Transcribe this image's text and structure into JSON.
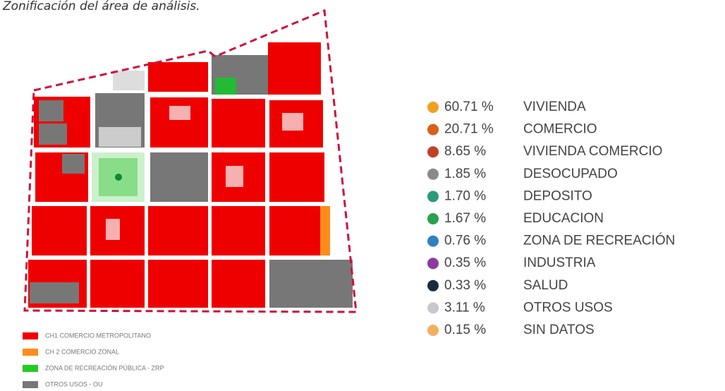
{
  "title": "Zonificación del área de análisis.",
  "zoning_legend": [
    {
      "label": "CH1 COMERCIO METROPOLITANO",
      "color": "#f00000"
    },
    {
      "label": "CH 2 COMERCIO ZONAL",
      "color": "#ff8c1a"
    },
    {
      "label": "ZONA DE RECREACIÓN PÚBLICA - ZRP",
      "color": "#22cc22"
    },
    {
      "label": "OTROS USOS - OU",
      "color": "#777777"
    }
  ],
  "land_use_legend": [
    {
      "percent": "60.71 %",
      "label": "VIVIENDA",
      "color": "#f0a020"
    },
    {
      "percent": "20.71 %",
      "label": "COMERCIO",
      "color": "#d9601a"
    },
    {
      "percent": "8.65 %",
      "label": "VIVIENDA COMERCIO",
      "color": "#c0402a"
    },
    {
      "percent": "1.85 %",
      "label": "DESOCUPADO",
      "color": "#8a8a8a"
    },
    {
      "percent": "1.70 %",
      "label": "DEPOSITO",
      "color": "#2a9a7a"
    },
    {
      "percent": "1.67 %",
      "label": "EDUCACION",
      "color": "#2aa050"
    },
    {
      "percent": "0.76 %",
      "label": "ZONA DE RECREACIÓN",
      "color": "#3080c0"
    },
    {
      "percent": "0.35 %",
      "label": "INDUSTRIA",
      "color": "#8a3aa0"
    },
    {
      "percent": "0.33 %",
      "label": "SALUD",
      "color": "#1a2a40"
    },
    {
      "percent": "3.11 %",
      "label": "OTROS USOS",
      "color": "#c8c8cc"
    },
    {
      "percent": "0.15 %",
      "label": "SIN DATOS",
      "color": "#f0b060"
    }
  ]
}
